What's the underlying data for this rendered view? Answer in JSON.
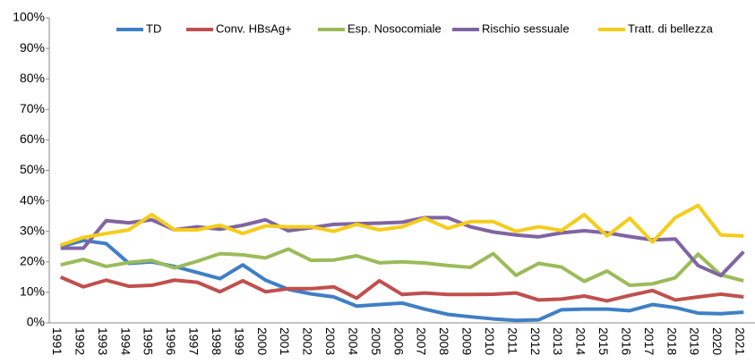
{
  "chart_data": {
    "type": "line",
    "categories": [
      "1991",
      "1992",
      "1993",
      "1994",
      "1995",
      "1996",
      "1997",
      "1998",
      "1999",
      "2000",
      "2001",
      "2002",
      "2003",
      "2004",
      "2005",
      "2006",
      "2007",
      "2008",
      "2009",
      "2010",
      "2011",
      "2012",
      "2013",
      "2014",
      "2015",
      "2016",
      "2017",
      "2018",
      "2019",
      "2020",
      "2021"
    ],
    "series": [
      {
        "name": "TD",
        "color": "#3f7fc6",
        "values": [
          25,
          27,
          26,
          19.5,
          20,
          18.5,
          16.5,
          14.5,
          19,
          14,
          11,
          9.5,
          8.5,
          5.5,
          6,
          6.5,
          4.5,
          2.8,
          2,
          1.3,
          0.8,
          1,
          4.3,
          4.5,
          4.5,
          4,
          6,
          5,
          3.2,
          3,
          3.5
        ]
      },
      {
        "name": "Conv. HBsAg+",
        "color": "#c0504d",
        "values": [
          15,
          11.8,
          14,
          12,
          12.3,
          14,
          13.3,
          10.2,
          13.8,
          10.2,
          11.2,
          11.2,
          11.8,
          8.1,
          13.8,
          9.3,
          9.8,
          9.3,
          9.3,
          9.4,
          9.8,
          7.5,
          7.8,
          8.8,
          7.2,
          9,
          10.6,
          7.5,
          8.5,
          9.4,
          8.5
        ]
      },
      {
        "name": "Esp. Nosocomiale",
        "color": "#9bbb59",
        "values": [
          19,
          20.8,
          18.5,
          19.8,
          20.5,
          18,
          20.2,
          22.7,
          22.3,
          21.3,
          24.2,
          20.5,
          20.6,
          22,
          19.7,
          20,
          19.6,
          18.8,
          18.2,
          22.7,
          15.6,
          19.5,
          18.3,
          13.6,
          17,
          12.3,
          12.8,
          14.8,
          22.5,
          15.7,
          13.8
        ]
      },
      {
        "name": "Rischio sessuale",
        "color": "#8064a2",
        "values": [
          24.5,
          24.5,
          33.5,
          32.8,
          33.8,
          30.5,
          31.5,
          30.7,
          32,
          33.8,
          30.2,
          31.2,
          32.3,
          32.5,
          32.7,
          33,
          34.5,
          34.5,
          31.5,
          29.8,
          28.8,
          28.2,
          29.5,
          30.2,
          29.5,
          28.3,
          27.2,
          27.5,
          18.8,
          15.5,
          23.3
        ]
      },
      {
        "name": "Tratt. di bellezza",
        "color": "#f5cc1a",
        "values": [
          25.5,
          28,
          29.3,
          30.5,
          35.5,
          30.5,
          30.5,
          32,
          29.3,
          31.8,
          31.5,
          31.5,
          30,
          32.3,
          30.5,
          31.5,
          34.3,
          31,
          33.2,
          33.2,
          30,
          31.5,
          30.3,
          35.5,
          28.5,
          34.3,
          26.5,
          34.5,
          38.5,
          28.8,
          28.5
        ]
      }
    ],
    "ylim": [
      0,
      100
    ],
    "yticks": [
      {
        "value": 0,
        "label": "0%"
      },
      {
        "value": 10,
        "label": "10%"
      },
      {
        "value": 20,
        "label": "20%"
      },
      {
        "value": 30,
        "label": "30%"
      },
      {
        "value": 40,
        "label": "40%"
      },
      {
        "value": 50,
        "label": "50%"
      },
      {
        "value": 60,
        "label": "60%"
      },
      {
        "value": 70,
        "label": "70%"
      },
      {
        "value": 80,
        "label": "80%"
      },
      {
        "value": 90,
        "label": "90%"
      },
      {
        "value": 100,
        "label": "100%"
      }
    ],
    "legend": "top"
  }
}
